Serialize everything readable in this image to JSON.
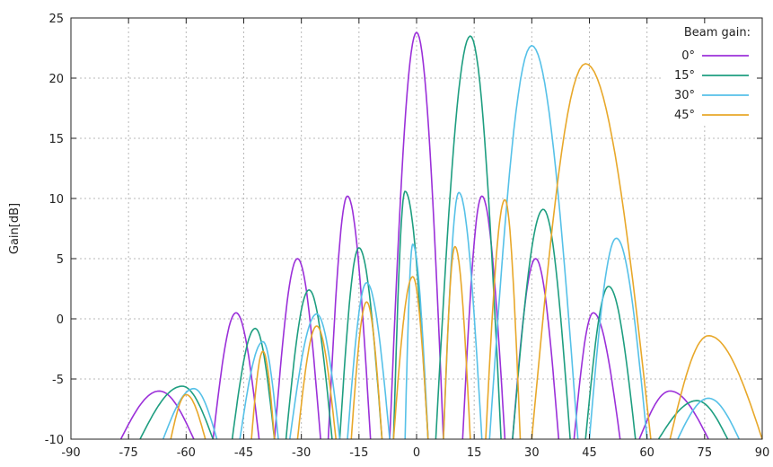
{
  "chart_data": {
    "type": "line",
    "title": "",
    "xlabel": "",
    "ylabel": "Gain[dB]",
    "xlim": [
      -90,
      90
    ],
    "ylim": [
      -10,
      25
    ],
    "xticks": [
      -90,
      -75,
      -60,
      -45,
      -30,
      -15,
      0,
      15,
      30,
      45,
      60,
      75,
      90
    ],
    "yticks": [
      -10,
      -5,
      0,
      5,
      10,
      15,
      20,
      25
    ],
    "grid": true,
    "legend": {
      "title": "Beam gain:",
      "placement": "top-right"
    },
    "series": [
      {
        "name": "0°",
        "color": "#9b30d9",
        "lobes": [
          [
            -77,
            -67,
            -6.0,
            -58
          ],
          [
            -53,
            -47,
            0.5,
            -41
          ],
          [
            -37,
            -31,
            5.0,
            -25
          ],
          [
            -23,
            -18,
            10.2,
            -12
          ],
          [
            -7,
            0,
            23.8,
            7
          ],
          [
            12,
            17,
            10.2,
            23
          ],
          [
            25,
            31,
            5.0,
            37
          ],
          [
            41,
            46,
            0.5,
            53
          ],
          [
            58,
            66,
            -6.0,
            76
          ]
        ]
      },
      {
        "name": "15°",
        "color": "#1e9e80",
        "lobes": [
          [
            -72,
            -61,
            -5.6,
            -53
          ],
          [
            -48,
            -42,
            -0.8,
            -37
          ],
          [
            -34,
            -28,
            2.4,
            -22
          ],
          [
            -20,
            -15,
            5.9,
            -9
          ],
          [
            -6,
            -3,
            10.6,
            3
          ],
          [
            5,
            14,
            23.5,
            22
          ],
          [
            25,
            33,
            9.1,
            40
          ],
          [
            44,
            50,
            2.7,
            57
          ],
          [
            63,
            73,
            -6.8,
            81
          ]
        ]
      },
      {
        "name": "30°",
        "color": "#56c1e8",
        "lobes": [
          [
            -66,
            -58,
            -5.8,
            -52
          ],
          [
            -46,
            -40,
            -1.9,
            -36
          ],
          [
            -33,
            -26,
            0.4,
            -20
          ],
          [
            -18,
            -13,
            3.0,
            -7
          ],
          [
            -3,
            -1,
            6.2,
            3
          ],
          [
            7,
            11,
            10.5,
            17
          ],
          [
            19,
            30,
            22.7,
            42
          ],
          [
            45,
            52,
            6.7,
            60
          ],
          [
            68,
            76,
            -6.6,
            84
          ]
        ]
      },
      {
        "name": "45°",
        "color": "#e8a82a",
        "lobes": [
          [
            -64,
            -60,
            -6.3,
            -55
          ],
          [
            -43,
            -40,
            -2.7,
            -37
          ],
          [
            -31,
            -26,
            -0.6,
            -21
          ],
          [
            -17,
            -13,
            1.4,
            -9
          ],
          [
            -6,
            -1,
            3.5,
            3
          ],
          [
            7,
            10,
            6.0,
            14
          ],
          [
            18,
            23,
            9.9,
            27
          ],
          [
            30,
            44,
            21.2,
            61
          ],
          [
            66,
            76,
            -1.4,
            90
          ]
        ]
      }
    ]
  }
}
